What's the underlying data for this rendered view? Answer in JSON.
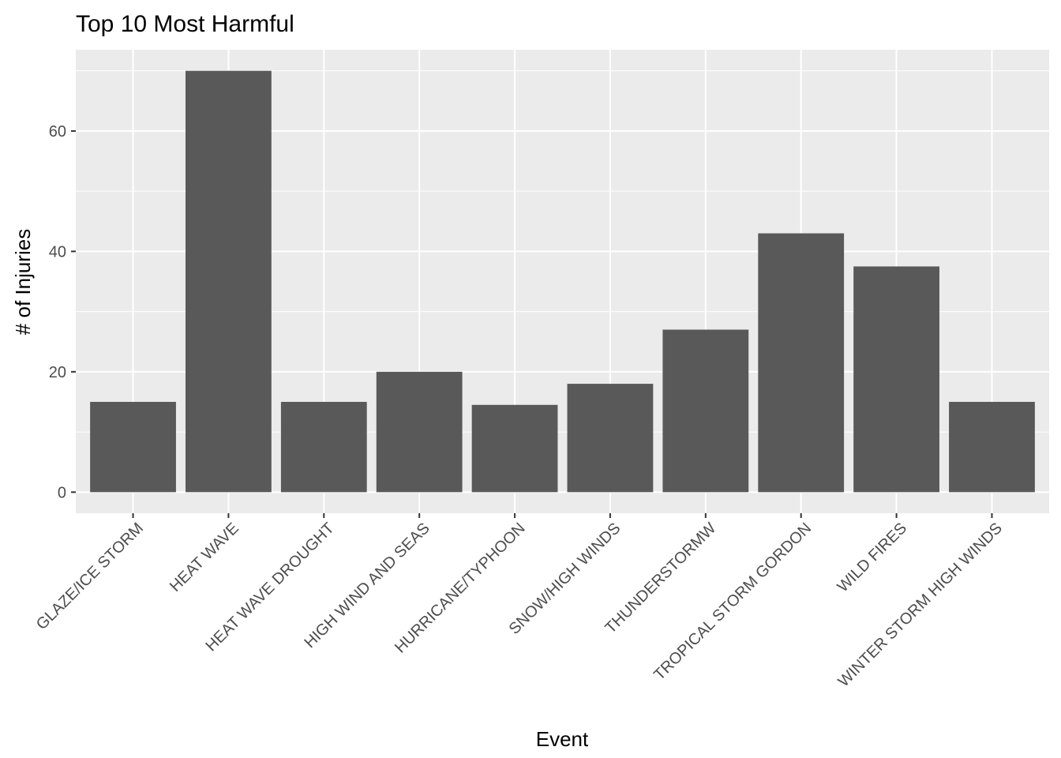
{
  "chart_data": {
    "type": "bar",
    "title": "Top 10 Most Harmful",
    "xlabel": "Event",
    "ylabel": "# of Injuries",
    "categories": [
      "GLAZE/ICE STORM",
      "HEAT WAVE",
      "HEAT WAVE DROUGHT",
      "HIGH WIND AND SEAS",
      "HURRICANE/TYPHOON",
      "SNOW/HIGH WINDS",
      "THUNDERSTORMW",
      "TROPICAL STORM GORDON",
      "WILD FIRES",
      "WINTER STORM HIGH WINDS"
    ],
    "values": [
      15,
      70,
      15,
      20,
      14.5,
      18,
      27,
      43,
      37.5,
      15
    ],
    "ylim": [
      -3.5,
      73.5
    ],
    "yticks": [
      0,
      20,
      40,
      60
    ],
    "grid": true,
    "colors": {
      "panel": "#ebebeb",
      "grid": "#ffffff",
      "bar": "#595959",
      "tick": "#333333"
    }
  }
}
